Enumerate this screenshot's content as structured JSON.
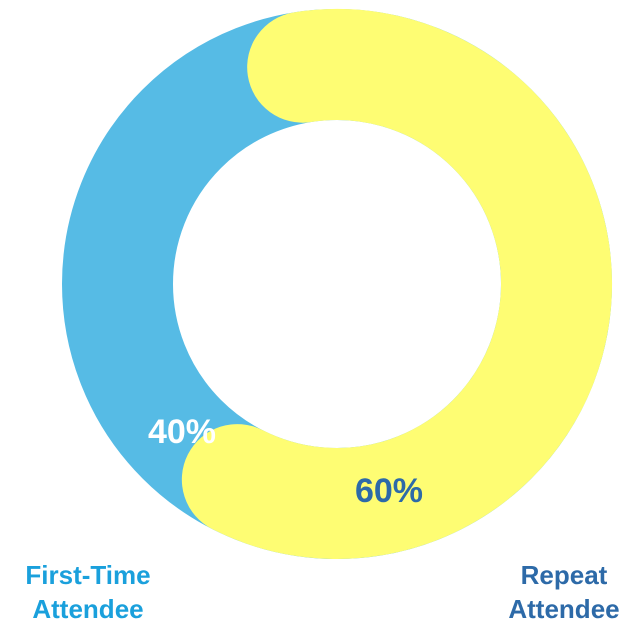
{
  "chart_data": {
    "type": "pie",
    "donut": true,
    "slices": [
      {
        "name": "First-Time Attendee",
        "value": 40,
        "label": "40%",
        "color": "#56bbe5",
        "label_color": "#ffffff"
      },
      {
        "name": "Repeat Attendee",
        "value": 60,
        "label": "60%",
        "color": "#fefd73",
        "label_color": "#2d6aa8"
      }
    ],
    "legend": {
      "placement": "bottom",
      "entries": [
        {
          "lines": [
            "First-Time",
            "Attendee"
          ],
          "color": "#1aa0dc"
        },
        {
          "lines": [
            "Repeat",
            "Attendee"
          ],
          "color": "#2d6aa8"
        }
      ]
    }
  }
}
